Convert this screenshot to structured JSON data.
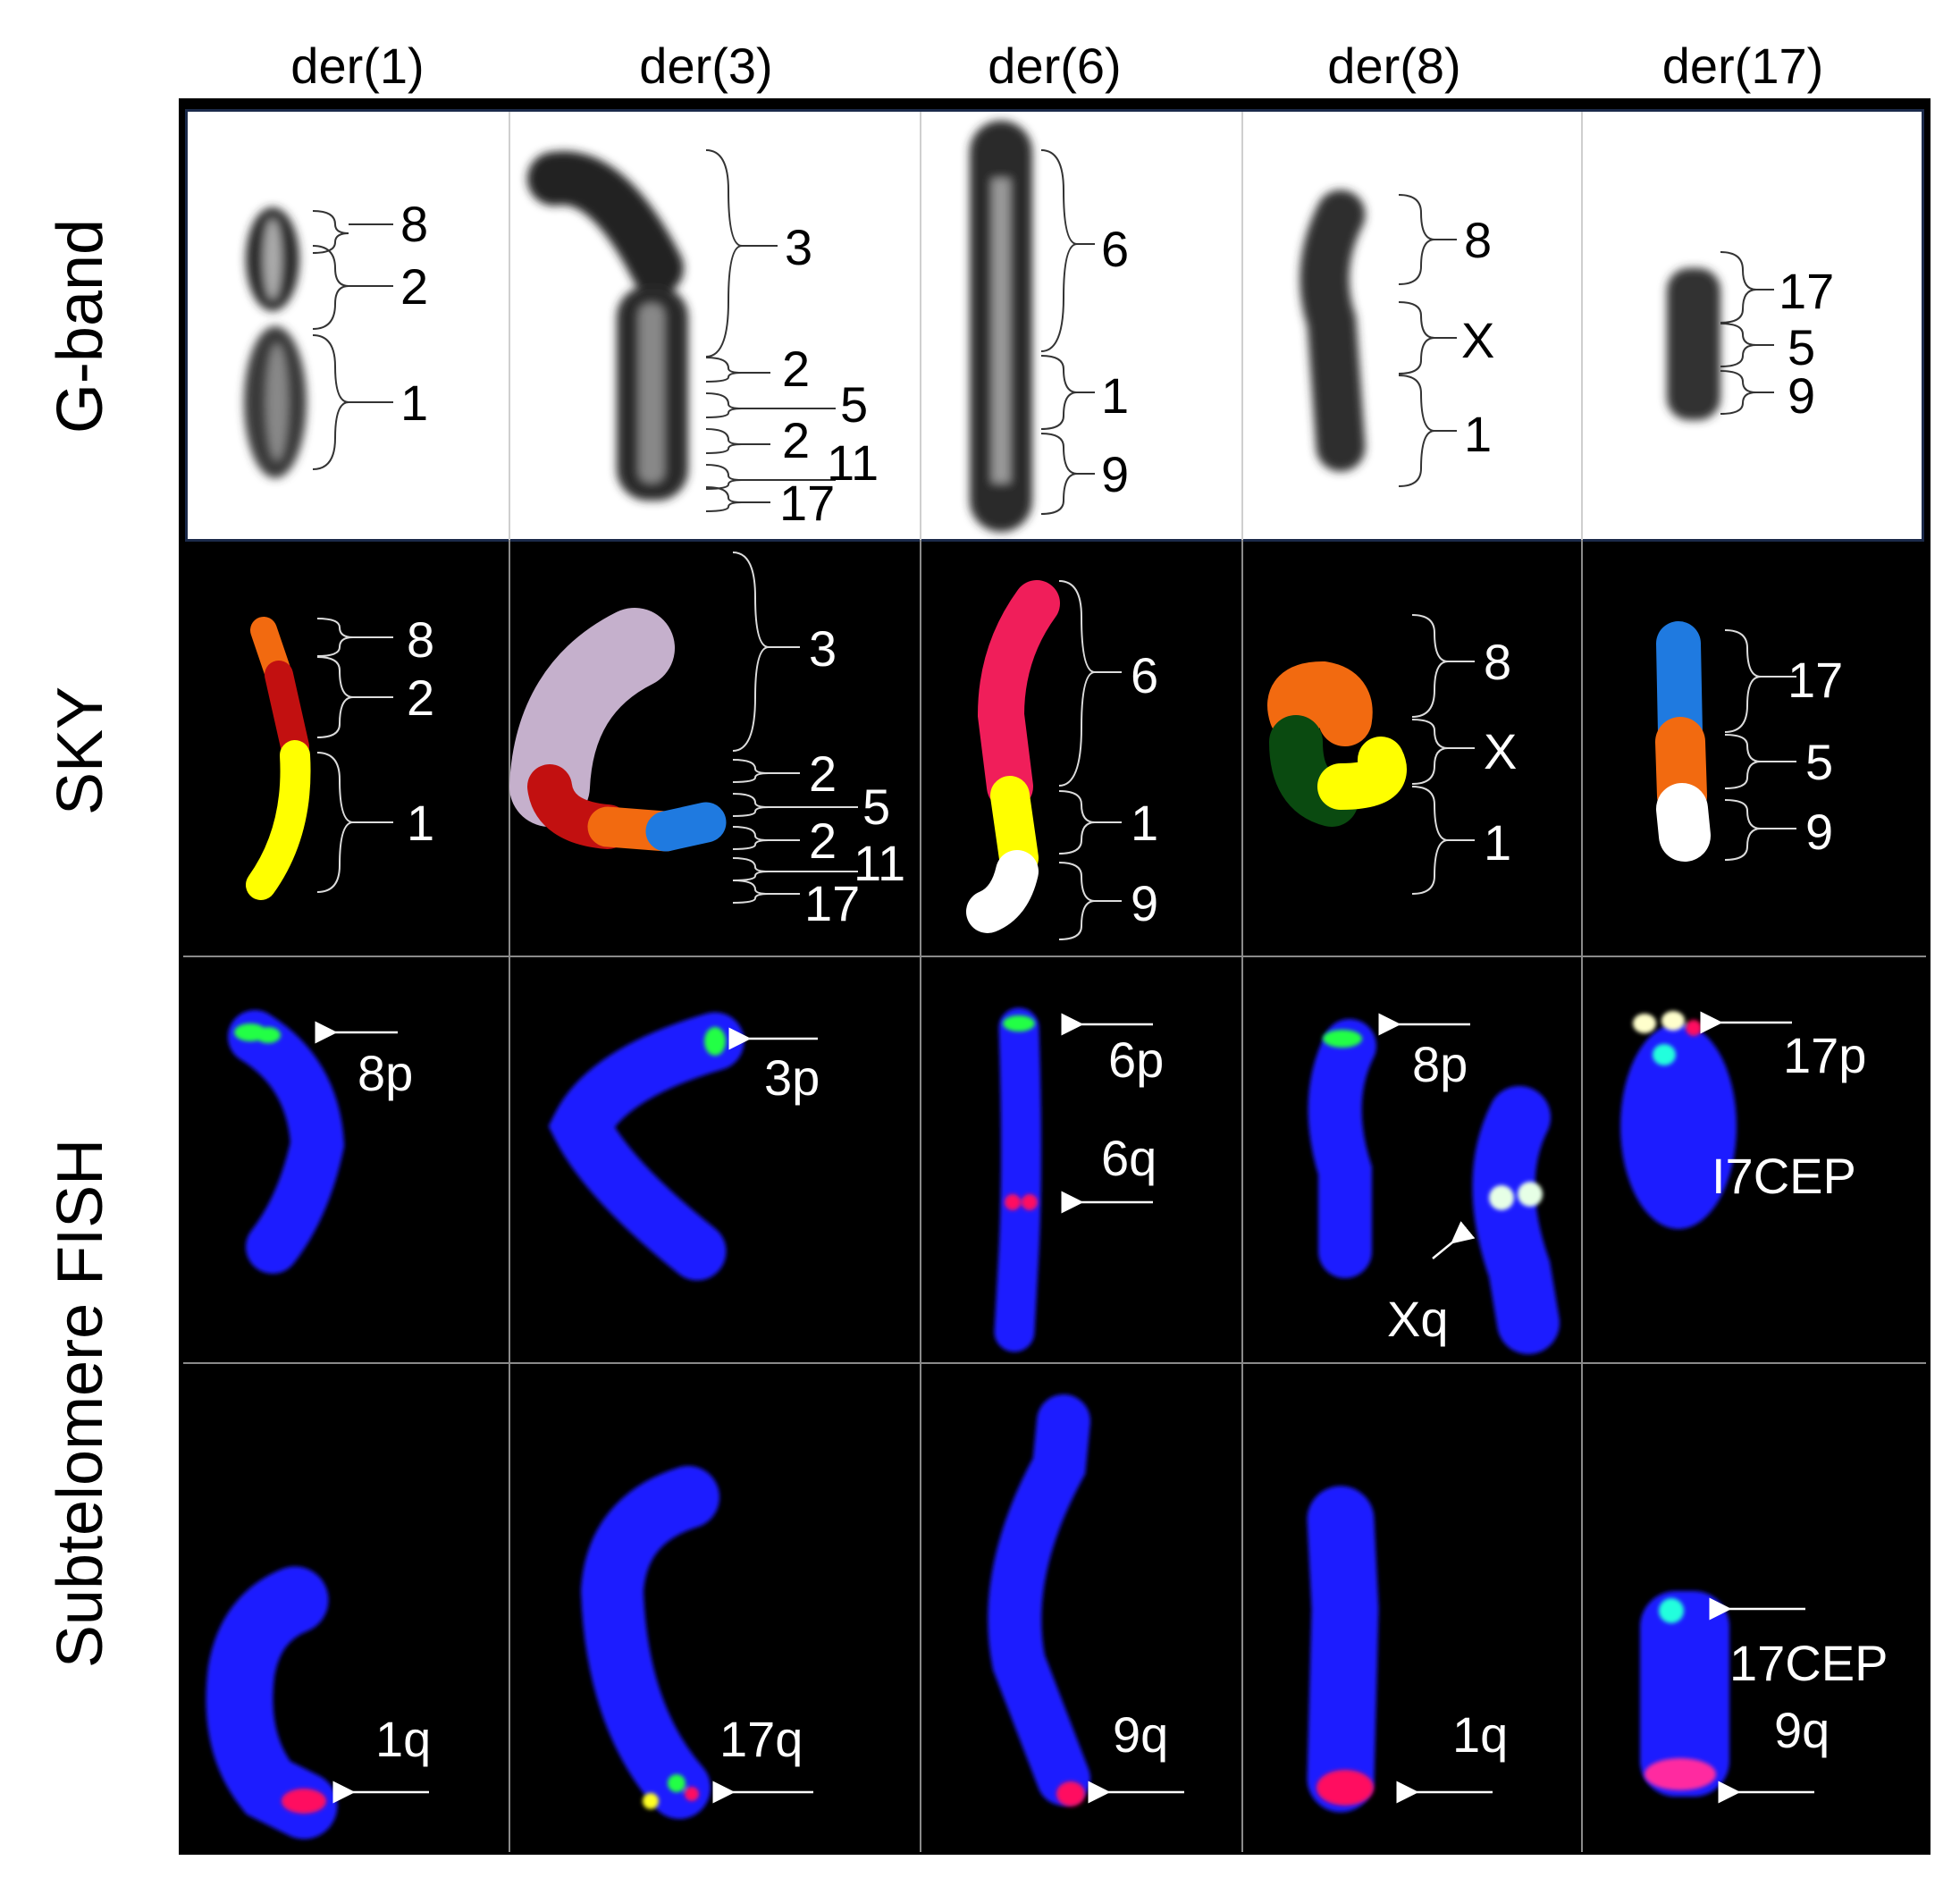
{
  "columns": [
    "der(1)",
    "der(3)",
    "der(6)",
    "der(8)",
    "der(17)"
  ],
  "row_labels": {
    "gband": "G-band",
    "sky": "SKY",
    "fish": "Subtelomere FISH"
  },
  "gband_labels": {
    "der1": [
      "8",
      "2",
      "1"
    ],
    "der3": [
      "3",
      "2",
      "5",
      "2",
      "11",
      "17"
    ],
    "der6": [
      "6",
      "1",
      "9"
    ],
    "der8": [
      "8",
      "X",
      "1"
    ],
    "der17": [
      "17",
      "5",
      "9"
    ]
  },
  "sky_labels": {
    "der1": [
      "8",
      "2",
      "1"
    ],
    "der3": [
      "3",
      "2",
      "5",
      "2",
      "11",
      "17"
    ],
    "der6": [
      "6",
      "1",
      "9"
    ],
    "der8": [
      "8",
      "X",
      "1"
    ],
    "der17": [
      "17",
      "5",
      "9"
    ]
  },
  "fish_top_labels": {
    "der1": "8p",
    "der3": "3p",
    "der6_p": "6p",
    "der6_q": "6q",
    "der8_p": "8p",
    "der8_x": "Xq",
    "der17_p": "17p",
    "der17_cep": "I7CEP"
  },
  "fish_bottom_labels": {
    "der1": "1q",
    "der3": "17q",
    "der6": "9q",
    "der8": "1q",
    "der17_cep": "17CEP",
    "der17_q": "9q"
  },
  "colors": {
    "background": "#000000",
    "chromosome_blue": "#1a1aff",
    "probe_green": "#22ff44",
    "probe_red": "#ff1060",
    "sky_red": "#c21010",
    "sky_orange": "#f26a10",
    "sky_yellow": "#ffff00",
    "sky_lilac": "#c5b0cc",
    "sky_blue": "#1f7ae0",
    "sky_pink": "#f01e5a",
    "sky_darkgreen": "#0a4a10",
    "sky_white": "#ffffff",
    "gband_border": "#1b2a4a"
  }
}
